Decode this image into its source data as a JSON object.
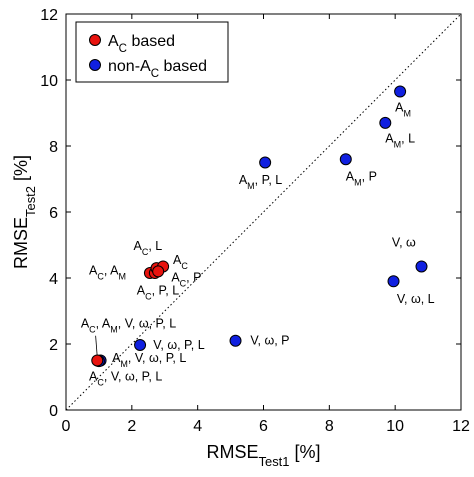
{
  "chart_data": {
    "type": "scatter",
    "xlabel": "RMSE",
    "xlabel_sub": "Test1",
    "xlabel_unit": " [%]",
    "ylabel": "RMSE",
    "ylabel_sub": "Test2",
    "ylabel_unit": " [%]",
    "xlim": [
      0,
      12
    ],
    "ylim": [
      0,
      12
    ],
    "xticks": [
      "0",
      "2",
      "4",
      "6",
      "8",
      "10",
      "12"
    ],
    "yticks": [
      "0",
      "2",
      "4",
      "6",
      "8",
      "10",
      "12"
    ],
    "diagonal": "dotted y=x reference line",
    "legend_position": "top-left",
    "series": [
      {
        "name": "A_C based",
        "color": "#e8130e",
        "points": [
          {
            "x": 0.95,
            "y": 1.5,
            "label": "A_C, A_M, V, ω, P, L"
          },
          {
            "x": 2.55,
            "y": 4.15,
            "label": "A_C, A_M"
          },
          {
            "x": 2.7,
            "y": 4.15,
            "label": "A_C, P, L"
          },
          {
            "x": 2.75,
            "y": 4.3,
            "label": "A_C, L"
          },
          {
            "x": 2.95,
            "y": 4.35,
            "label": "A_C"
          },
          {
            "x": 2.8,
            "y": 4.2,
            "label": "A_C, P"
          }
        ]
      },
      {
        "name": "non-A_C based",
        "color": "#1020e0",
        "points": [
          {
            "x": 1.05,
            "y": 1.5,
            "label": "A_C, V, ω, P, L"
          },
          {
            "x": 1.0,
            "y": 1.48,
            "label": "A_M, V, ω, P, L"
          },
          {
            "x": 2.25,
            "y": 1.97,
            "label": "V, ω, P, L"
          },
          {
            "x": 5.15,
            "y": 2.1,
            "label": "V, ω, P"
          },
          {
            "x": 6.05,
            "y": 7.5,
            "label": "A_M, P, L"
          },
          {
            "x": 8.5,
            "y": 7.6,
            "label": "A_M, P"
          },
          {
            "x": 9.7,
            "y": 8.7,
            "label": "A_M, L"
          },
          {
            "x": 10.15,
            "y": 9.65,
            "label": "A_M"
          },
          {
            "x": 9.95,
            "y": 3.9,
            "label": "V, ω, L"
          },
          {
            "x": 10.8,
            "y": 4.35,
            "label": "V, ω"
          }
        ]
      }
    ],
    "legend": [
      {
        "text": "A",
        "sub": "C",
        "rest": " based",
        "color": "#e8130e"
      },
      {
        "text": "non-A",
        "sub": "C",
        "rest": " based",
        "color": "#1020e0"
      }
    ],
    "annotations": [
      {
        "parts": [
          [
            "A",
            ""
          ],
          [
            "C",
            "sub"
          ],
          [
            ", L",
            ""
          ]
        ],
        "ax": 2.05,
        "ay": 4.85
      },
      {
        "parts": [
          [
            "A",
            ""
          ],
          [
            "C",
            "sub"
          ]
        ],
        "ax": 3.25,
        "ay": 4.42
      },
      {
        "parts": [
          [
            "A",
            ""
          ],
          [
            "C",
            "sub"
          ],
          [
            ", A",
            ""
          ],
          [
            "M",
            "sub"
          ]
        ],
        "ax": 0.7,
        "ay": 4.1
      },
      {
        "parts": [
          [
            "A",
            ""
          ],
          [
            "C",
            "sub"
          ],
          [
            ", P",
            ""
          ]
        ],
        "ax": 3.2,
        "ay": 3.9
      },
      {
        "parts": [
          [
            "A",
            ""
          ],
          [
            "C",
            "sub"
          ],
          [
            ", P, L",
            ""
          ]
        ],
        "ax": 2.15,
        "ay": 3.5
      },
      {
        "parts": [
          [
            "A",
            ""
          ],
          [
            "C",
            "sub"
          ],
          [
            ", A",
            ""
          ],
          [
            "M",
            "sub"
          ],
          [
            ", V, ω, P, L",
            ""
          ]
        ],
        "ax": 0.45,
        "ay": 2.5
      },
      {
        "parts": [
          [
            "A",
            ""
          ],
          [
            "M",
            "sub"
          ],
          [
            ", V, ω, P, L",
            ""
          ]
        ],
        "ax": 1.4,
        "ay": 1.45
      },
      {
        "parts": [
          [
            "A",
            ""
          ],
          [
            "C",
            "sub"
          ],
          [
            ", V, ω, P, L",
            ""
          ]
        ],
        "ax": 0.7,
        "ay": 0.9
      },
      {
        "parts": [
          [
            "V, ω, P, L",
            ""
          ]
        ],
        "ax": 2.65,
        "ay": 1.85
      },
      {
        "parts": [
          [
            "V, ω, P",
            ""
          ]
        ],
        "ax": 5.6,
        "ay": 1.98
      },
      {
        "parts": [
          [
            "A",
            ""
          ],
          [
            "M",
            "sub"
          ],
          [
            ", P, L",
            ""
          ]
        ],
        "ax": 5.25,
        "ay": 6.85
      },
      {
        "parts": [
          [
            "A",
            ""
          ],
          [
            "M",
            "sub"
          ],
          [
            ", P",
            ""
          ]
        ],
        "ax": 8.5,
        "ay": 6.95
      },
      {
        "parts": [
          [
            "A",
            ""
          ],
          [
            "M",
            "sub"
          ],
          [
            ", L",
            ""
          ]
        ],
        "ax": 9.7,
        "ay": 8.1
      },
      {
        "parts": [
          [
            "A",
            ""
          ],
          [
            "M",
            "sub"
          ]
        ],
        "ax": 10.0,
        "ay": 9.05
      },
      {
        "parts": [
          [
            "V, ω",
            ""
          ]
        ],
        "ax": 9.9,
        "ay": 4.95
      },
      {
        "parts": [
          [
            "V, ω, L",
            ""
          ]
        ],
        "ax": 10.05,
        "ay": 3.25
      }
    ]
  }
}
